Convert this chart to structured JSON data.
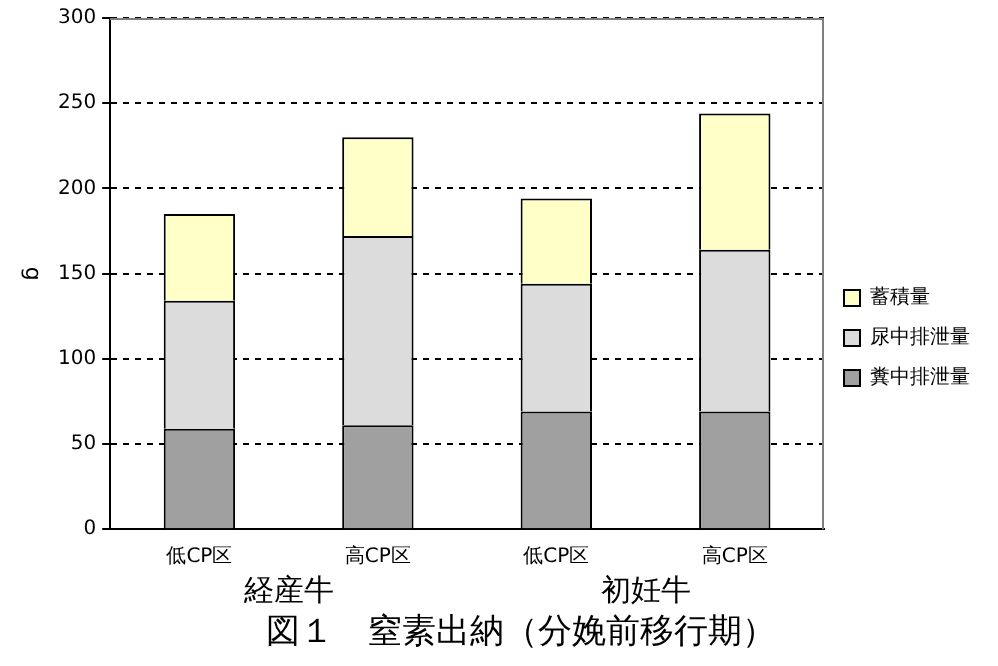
{
  "chart_data": {
    "type": "bar",
    "stacked": true,
    "title": "図１　窒素出納（分娩前移行期）",
    "ylabel": "g",
    "categories": [
      "低CP区",
      "高CP区",
      "低CP区",
      "高CP区"
    ],
    "annotations": [
      "経産牛",
      "初妊牛"
    ],
    "series": [
      {
        "name": "糞中排泄量",
        "color": "#a0a0a0",
        "values": [
          59,
          61,
          69,
          69
        ]
      },
      {
        "name": "尿中排泄量",
        "color": "#dcdcdc",
        "values": [
          75,
          111,
          75,
          95
        ]
      },
      {
        "name": "蓄積量",
        "color": "#ffffc8",
        "values": [
          51,
          58,
          50,
          80
        ]
      }
    ],
    "ylim": [
      0,
      300
    ],
    "yticks": [
      0,
      50,
      100,
      150,
      200,
      250,
      300
    ],
    "grid": "y",
    "legend": "right"
  }
}
